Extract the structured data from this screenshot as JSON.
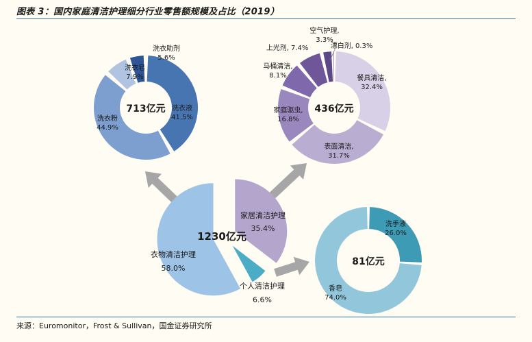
{
  "title": "图表 3：国内家庭清洁护理细分行业零售额规模及占比（2019）",
  "source": "来源：Euromonitor，Frost & Sullivan，国金证券研究所",
  "colors": {
    "background": "#FEFCF3",
    "rule": "#2C6E9B",
    "arrow": "#A6A6A6"
  },
  "chart_data": [
    {
      "type": "pie",
      "center_label": "1230亿元",
      "slices": [
        {
          "name": "家居清洁护理",
          "value": 35.4,
          "label": "35.4%",
          "color": "#B4A5CC"
        },
        {
          "name": "个人清洁护理",
          "value": 6.6,
          "label": "6.6%",
          "color": "#4BACC6"
        },
        {
          "name": "衣物清洁护理",
          "value": 58.0,
          "label": "58.0%",
          "color": "#9DC3E6"
        }
      ]
    },
    {
      "type": "donut",
      "center_label": "713亿元",
      "slices": [
        {
          "name": "洗衣液",
          "value": 41.5,
          "label": "41.5%",
          "color": "#4675B1"
        },
        {
          "name": "洗衣粉",
          "value": 44.9,
          "label": "44.9%",
          "color": "#7D9FCF"
        },
        {
          "name": "洗衣皂",
          "value": 7.9,
          "label": "7.9%",
          "color": "#B0C4E2"
        },
        {
          "name": "洗衣助剂",
          "value": 5.6,
          "label": "5.6%",
          "color": "#2F5597"
        }
      ]
    },
    {
      "type": "donut",
      "center_label": "436亿元",
      "slices": [
        {
          "name": "餐具清洁,",
          "value": 32.4,
          "label": "32.4%",
          "color": "#D7D0E6"
        },
        {
          "name": "表面清洁,",
          "value": 31.7,
          "label": "31.7%",
          "color": "#B9AED2"
        },
        {
          "name": "家庭驱虫,",
          "value": 16.8,
          "label": "16.8%",
          "color": "#9A87BD"
        },
        {
          "name": "马桶清洁,",
          "value": 8.1,
          "label": "8.1%",
          "color": "#8068AC"
        },
        {
          "name": "上光剂,",
          "value": 7.4,
          "label": "7.4%",
          "color": "#6E5699"
        },
        {
          "name": "空气护理,",
          "value": 3.3,
          "label": "3.3%",
          "color": "#5C4789"
        },
        {
          "name": "漂白剂,",
          "value": 0.3,
          "label": "0.3%",
          "color": "#9983BF"
        }
      ]
    },
    {
      "type": "donut",
      "center_label": "81亿元",
      "slices": [
        {
          "name": "洗手液",
          "value": 26.0,
          "label": "26.0%",
          "color": "#3D9BB5"
        },
        {
          "name": "香皂",
          "value": 74.0,
          "label": "74.0%",
          "color": "#92C7DB"
        }
      ]
    }
  ]
}
